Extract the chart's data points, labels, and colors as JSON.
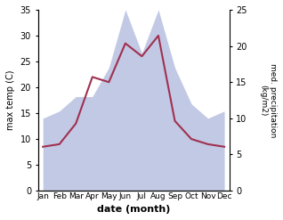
{
  "months": [
    "Jan",
    "Feb",
    "Mar",
    "Apr",
    "May",
    "Jun",
    "Jul",
    "Aug",
    "Sep",
    "Oct",
    "Nov",
    "Dec"
  ],
  "month_positions": [
    0,
    1,
    2,
    3,
    4,
    5,
    6,
    7,
    8,
    9,
    10,
    11
  ],
  "temperature": [
    8.5,
    9.0,
    13.0,
    22.0,
    21.0,
    28.5,
    26.0,
    30.0,
    13.5,
    10.0,
    9.0,
    8.5
  ],
  "precipitation": [
    10.0,
    11.0,
    13.0,
    13.0,
    17.0,
    25.0,
    19.0,
    25.0,
    17.0,
    12.0,
    10.0,
    11.0
  ],
  "temp_color": "#a03050",
  "precip_color": "#b8c0e0",
  "temp_ylim": [
    0,
    35
  ],
  "precip_ylim": [
    0,
    25
  ],
  "temp_yticks": [
    0,
    5,
    10,
    15,
    20,
    25,
    30,
    35
  ],
  "precip_yticks": [
    0,
    5,
    10,
    15,
    20,
    25
  ],
  "ylabel_left": "max temp (C)",
  "ylabel_right": "med. precipitation\n(kg/m2)",
  "xlabel": "date (month)",
  "background_color": "#ffffff"
}
